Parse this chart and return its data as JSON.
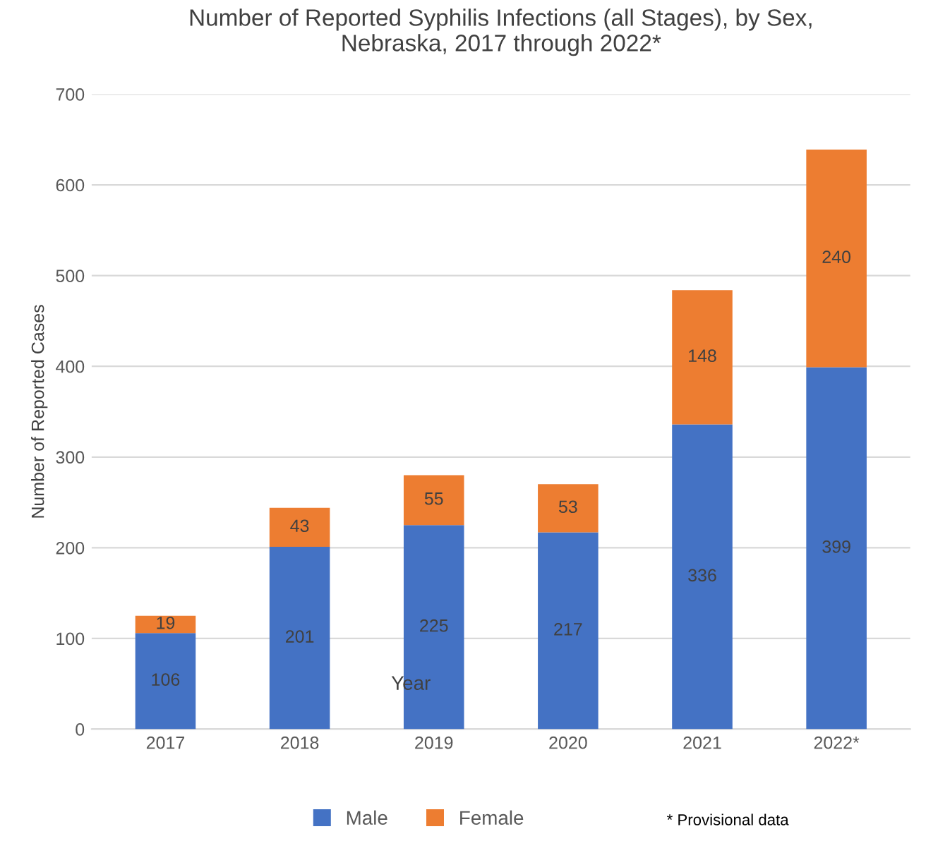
{
  "chart_data": {
    "type": "bar",
    "title": "Number of Reported Syphilis Infections (all Stages), by Sex,\nNebraska, 2017 through 2022*",
    "xlabel": "Year",
    "ylabel": "Number of Reported Cases",
    "categories": [
      "2017",
      "2018",
      "2019",
      "2020",
      "2021",
      "2022*"
    ],
    "series": [
      {
        "name": "Male",
        "color": "#4472c4",
        "values": [
          106,
          201,
          225,
          217,
          336,
          399
        ]
      },
      {
        "name": "Female",
        "color": "#ed7d31",
        "values": [
          19,
          43,
          55,
          53,
          148,
          240
        ]
      }
    ],
    "stacked": true,
    "data_labels": true,
    "ylim": [
      0,
      700
    ],
    "yticks": [
      0,
      100,
      200,
      300,
      400,
      500,
      600,
      700
    ],
    "grid": "y",
    "legend": "bottom",
    "annotations": [
      "* Provisional data"
    ]
  }
}
